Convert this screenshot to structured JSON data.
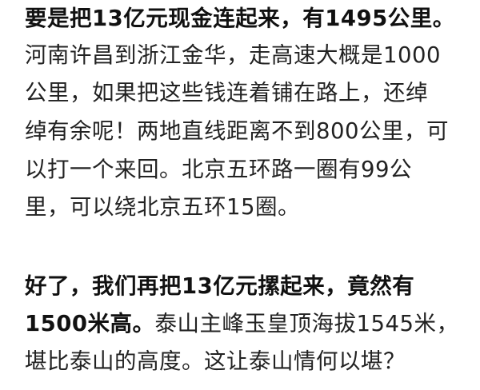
{
  "paragraphs": [
    {
      "lines": [
        {
          "bold": "要是把13亿元现金连起来，有1495公里。",
          "normal": ""
        },
        {
          "bold": "",
          "normal": "河南许昌到浙江金华，走高速大概是1000"
        },
        {
          "bold": "",
          "normal": "公里，如果把这些钱连着铺在路上，还绰"
        },
        {
          "bold": "",
          "normal": "绰有余呢！两地直线距离不到800公里，可"
        },
        {
          "bold": "",
          "normal": "以打一个来回。北京五环路一圈有99公"
        },
        {
          "bold": "",
          "normal": "里，可以绕北京五环15圈。"
        }
      ]
    },
    {
      "lines": [
        {
          "bold": "好了，我们再把13亿元摞起来，竟然有",
          "normal": ""
        },
        {
          "bold": "1500米高。",
          "normal": "泰山主峰玉皇顶海拔1545米，"
        },
        {
          "bold": "",
          "normal": "堪比泰山的高度。这让泰山情何以堪？"
        }
      ]
    }
  ]
}
